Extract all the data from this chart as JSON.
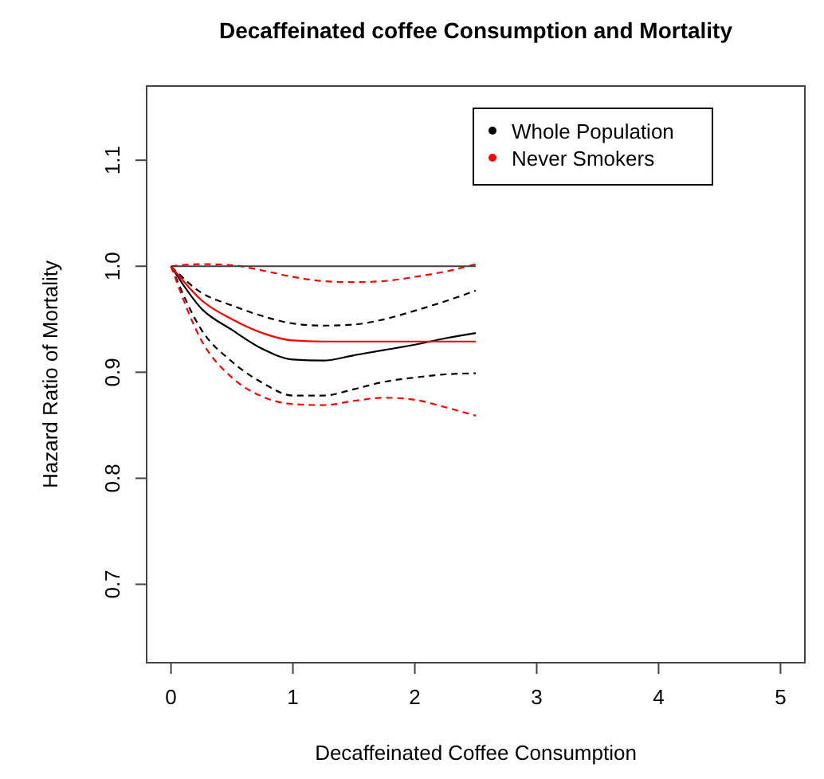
{
  "chart_data": {
    "type": "line",
    "title": "Decaffeinated coffee Consumption and Mortality",
    "xlabel": "Decaffeinated Coffee Consumption",
    "ylabel": "Hazard Ratio of Mortality",
    "x": [
      0,
      0.25,
      0.5,
      0.75,
      1,
      1.25,
      1.5,
      1.75,
      2,
      2.25,
      2.5
    ],
    "series": [
      {
        "name": "Whole Population",
        "color": "#000000",
        "values": [
          1.0,
          0.96,
          0.94,
          0.922,
          0.912,
          0.911,
          0.916,
          0.921,
          0.926,
          0.932,
          0.937
        ]
      },
      {
        "color": "#000000",
        "line_style": "dashed",
        "values": [
          1.0,
          0.94,
          0.91,
          0.89,
          0.878,
          0.878,
          0.884,
          0.891,
          0.895,
          0.898,
          0.899
        ]
      },
      {
        "color": "#000000",
        "line_style": "dashed",
        "values": [
          1.0,
          0.975,
          0.963,
          0.953,
          0.946,
          0.944,
          0.945,
          0.95,
          0.958,
          0.967,
          0.977
        ]
      },
      {
        "name": "Never Smokers",
        "color": "#ff0000",
        "values": [
          1.0,
          0.968,
          0.95,
          0.937,
          0.93,
          0.929,
          0.929,
          0.929,
          0.929,
          0.929,
          0.929
        ]
      },
      {
        "color": "#ff0000",
        "line_style": "dashed",
        "values": [
          1.0,
          0.93,
          0.895,
          0.877,
          0.87,
          0.869,
          0.873,
          0.876,
          0.874,
          0.867,
          0.859
        ]
      },
      {
        "color": "#ff0000",
        "line_style": "dashed",
        "values": [
          1.0,
          1.002,
          1.001,
          0.996,
          0.99,
          0.986,
          0.985,
          0.986,
          0.99,
          0.995,
          1.002
        ]
      },
      {
        "color": "#404040",
        "values": [
          1,
          1,
          1,
          1,
          1,
          1,
          1,
          1,
          1,
          1,
          1
        ]
      }
    ],
    "xlim": [
      -0.2,
      5.2
    ],
    "xticks": [
      0,
      1,
      2,
      3,
      4,
      5
    ],
    "ylim": [
      0.626,
      1.17
    ],
    "yticks": [
      {
        "value": 0.7,
        "label": "0.7"
      },
      {
        "value": 0.8,
        "label": "0.8"
      },
      {
        "value": 0.9,
        "label": "0.9"
      },
      {
        "value": 1.0,
        "label": "1.0"
      },
      {
        "value": 1.1,
        "label": "1.1"
      }
    ],
    "legend": "top right",
    "grid": false,
    "line_style": "solid"
  }
}
